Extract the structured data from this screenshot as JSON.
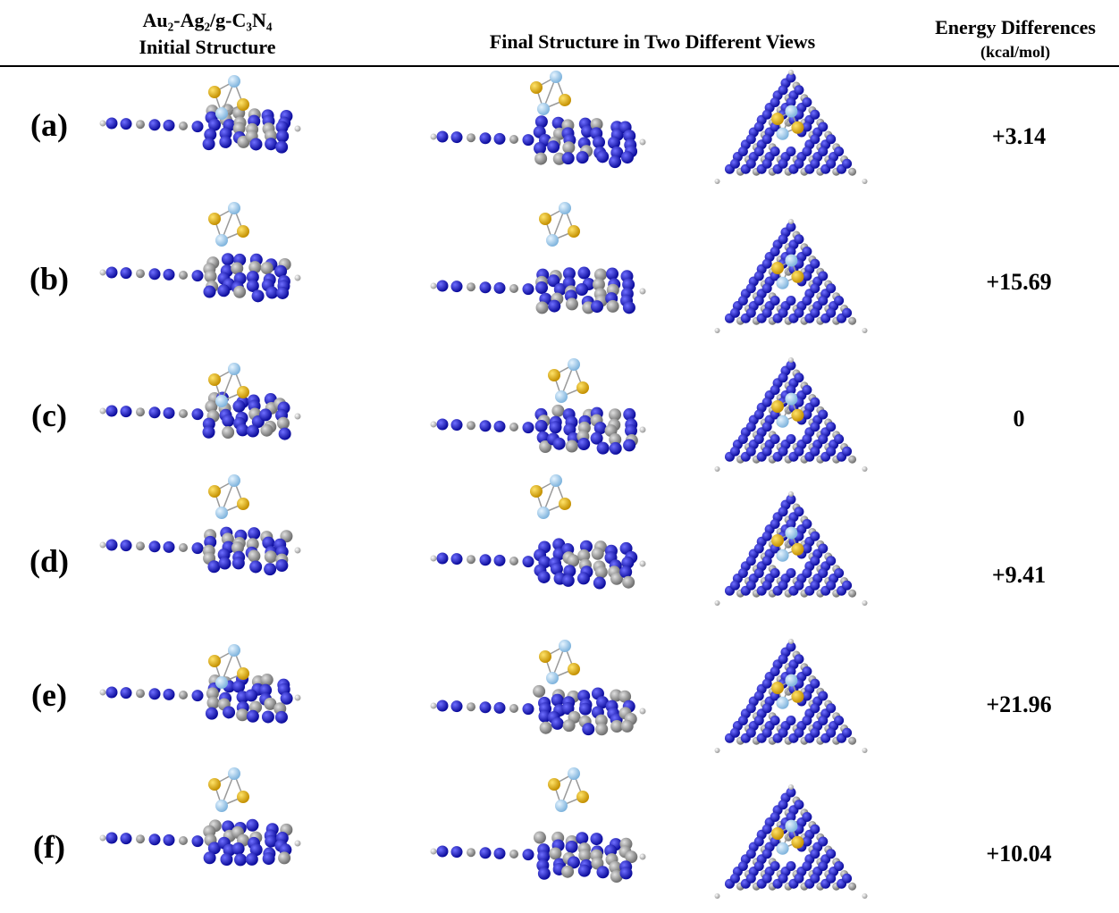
{
  "header": {
    "columns": [
      {
        "title": "Au₂-Ag₂/g-C₃N₄",
        "subtitle": "Initial Structure"
      },
      {
        "title": "Final Structure in Two Different Views"
      },
      {
        "title": "Energy Differences",
        "subtitle": "(kcal/mol)"
      }
    ]
  },
  "rows": [
    {
      "label": "(a)",
      "energy": "+3.14"
    },
    {
      "label": "(b)",
      "energy": "+15.69"
    },
    {
      "label": "(c)",
      "energy": "0"
    },
    {
      "label": "(d)",
      "energy": "+9.41"
    },
    {
      "label": "(e)",
      "energy": "+21.96"
    },
    {
      "label": "(f)",
      "energy": "+10.04"
    }
  ]
}
